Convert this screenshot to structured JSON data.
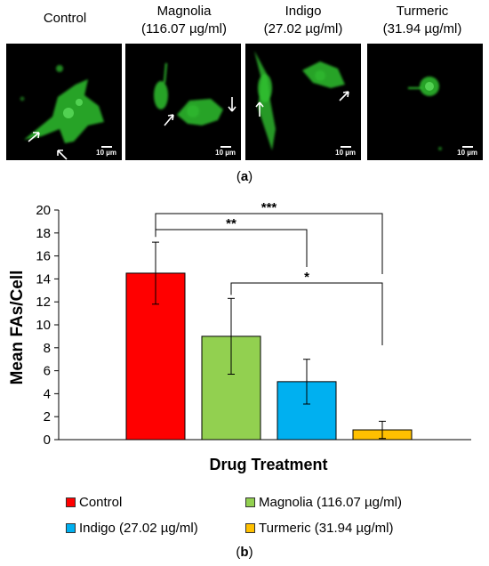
{
  "panel_a": {
    "labels": [
      {
        "line1": "Control",
        "line2": ""
      },
      {
        "line1": "Magnolia",
        "line2": "(116.07 µg/ml)"
      },
      {
        "line1": "Indigo",
        "line2": "(27.02 µg/ml)"
      },
      {
        "line1": "Turmeric",
        "line2": "(31.94 µg/ml)"
      }
    ],
    "scale_bar": "10 µm",
    "caption_prefix": "(",
    "caption_letter": "a",
    "caption_suffix": ")",
    "fluorescence_color": "#3fd63f"
  },
  "chart_data": {
    "type": "bar",
    "categories": [
      "Control",
      "Magnolia (116.07 µg/ml)",
      "Indigo (27.02 µg/ml)",
      "Turmeric (31.94 µg/ml)"
    ],
    "values": [
      14.5,
      9.0,
      5.05,
      0.85
    ],
    "errors": [
      2.7,
      3.3,
      1.95,
      0.75
    ],
    "colors": [
      "#ff0000",
      "#92d050",
      "#00b0f0",
      "#ffc000"
    ],
    "title": "",
    "xlabel": "Drug Treatment",
    "ylabel": "Mean FAs/Cell",
    "ylim": [
      0,
      20
    ],
    "yticks": [
      0,
      2,
      4,
      6,
      8,
      10,
      12,
      14,
      16,
      18,
      20
    ],
    "grid": false,
    "legend_position": "bottom",
    "significance": [
      {
        "from": 0,
        "to": 3,
        "label": "***"
      },
      {
        "from": 0,
        "to": 2,
        "label": "**"
      },
      {
        "from": 1,
        "to": 3,
        "label": "*"
      }
    ]
  },
  "panel_b": {
    "caption_prefix": "(",
    "caption_letter": "b",
    "caption_suffix": ")"
  }
}
